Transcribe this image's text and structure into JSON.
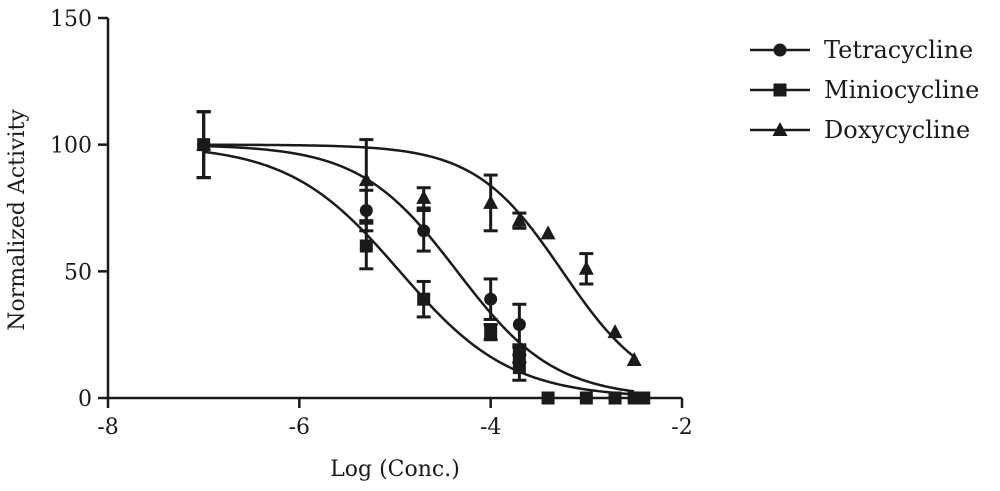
{
  "chart_data": {
    "type": "scatter",
    "title": "",
    "xlabel": "Log (Conc.)",
    "ylabel": "Normalized Activity",
    "xlim": [
      -8,
      -2
    ],
    "ylim": [
      0,
      150
    ],
    "xticks": [
      -8,
      -6,
      -4,
      -2
    ],
    "yticks": [
      0,
      50,
      100,
      150
    ],
    "xtick_labels": [
      "-8",
      "-6",
      "-4",
      "-2"
    ],
    "ytick_labels": [
      "0",
      "50",
      "100",
      "150"
    ],
    "legend_position": "top-right",
    "grid": false,
    "series": [
      {
        "name": "Tetracycline",
        "marker": "circle",
        "fit": {
          "top": 100,
          "bottom": 0,
          "log_ec50": -4.35,
          "hill": 0.85
        },
        "points": [
          {
            "x": -7.0,
            "y": 100,
            "err": 13
          },
          {
            "x": -5.3,
            "y": 74,
            "err": 8
          },
          {
            "x": -4.7,
            "y": 66,
            "err": 8
          },
          {
            "x": -4.0,
            "y": 39,
            "err": 8
          },
          {
            "x": -3.7,
            "y": 29,
            "err": 8
          },
          {
            "x": -3.0,
            "y": 0,
            "err": 0
          },
          {
            "x": -2.7,
            "y": 0,
            "err": 0
          },
          {
            "x": -2.5,
            "y": 0,
            "err": 0
          }
        ]
      },
      {
        "name": "Miniocycline",
        "marker": "square",
        "fit": {
          "top": 100,
          "bottom": 0,
          "log_ec50": -4.95,
          "hill": 0.75
        },
        "points": [
          {
            "x": -7.0,
            "y": 100,
            "err": 13
          },
          {
            "x": -5.3,
            "y": 60,
            "err": 9
          },
          {
            "x": -4.7,
            "y": 39,
            "err": 7
          },
          {
            "x": -4.0,
            "y": 26,
            "err": 3
          },
          {
            "x": -3.7,
            "y": 12,
            "err": 5
          },
          {
            "x": -3.7,
            "y": 17,
            "err": 3
          },
          {
            "x": -3.4,
            "y": 0,
            "err": 0
          },
          {
            "x": -3.0,
            "y": 0,
            "err": 0
          },
          {
            "x": -2.7,
            "y": 0,
            "err": 0
          },
          {
            "x": -2.5,
            "y": 0,
            "err": 0
          },
          {
            "x": -2.4,
            "y": 0,
            "err": 0
          }
        ]
      },
      {
        "name": "Doxycycline",
        "marker": "triangle",
        "fit": {
          "top": 100,
          "bottom": 0,
          "log_ec50": -3.25,
          "hill": 0.95
        },
        "points": [
          {
            "x": -7.0,
            "y": 100,
            "err": 13
          },
          {
            "x": -5.3,
            "y": 86,
            "err": 16
          },
          {
            "x": -4.7,
            "y": 79,
            "err": 4
          },
          {
            "x": -4.0,
            "y": 77,
            "err": 11
          },
          {
            "x": -3.7,
            "y": 70,
            "err": 3
          },
          {
            "x": -3.4,
            "y": 65,
            "err": 0
          },
          {
            "x": -3.0,
            "y": 51,
            "err": 6
          },
          {
            "x": -2.7,
            "y": 26,
            "err": 0
          },
          {
            "x": -2.5,
            "y": 15,
            "err": 0
          }
        ]
      }
    ]
  }
}
